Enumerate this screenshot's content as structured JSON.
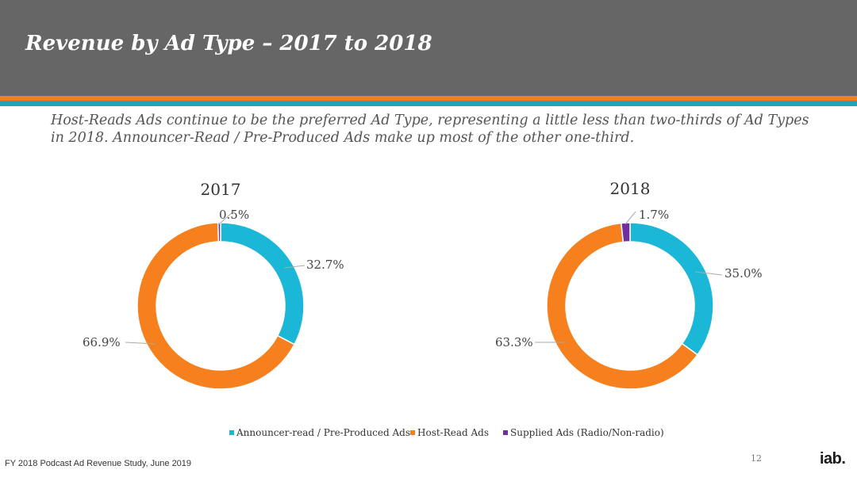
{
  "header": {
    "title": "Revenue by Ad Type – 2017 to 2018",
    "subtitle": "Host-Reads Ads continue to be the preferred Ad Type, representing a little less than two-thirds of Ad Types in 2018. Announcer-Read / Pre-Produced Ads make up most of the other one-third."
  },
  "colors": {
    "header_bg": "#666666",
    "accent_orange": "#f47e20",
    "accent_teal": "#22a3b7"
  },
  "chart_data": [
    {
      "type": "pie",
      "variant": "donut",
      "title": "2017",
      "categories": [
        "Announcer-read / Pre-Produced Ads",
        "Host-Read Ads",
        "Supplied Ads (Radio/Non-radio)"
      ],
      "values": [
        32.7,
        66.9,
        0.5
      ],
      "labels": [
        "32.7%",
        "66.9%",
        "0.5%"
      ],
      "colors": [
        "#1ab7d6",
        "#f5801d",
        "#7030a0"
      ]
    },
    {
      "type": "pie",
      "variant": "donut",
      "title": "2018",
      "categories": [
        "Announcer-read / Pre-Produced Ads",
        "Host-Read Ads",
        "Supplied Ads (Radio/Non-radio)"
      ],
      "values": [
        35.0,
        63.3,
        1.7
      ],
      "labels": [
        "35.0%",
        "63.3%",
        "1.7%"
      ],
      "colors": [
        "#1ab7d6",
        "#f5801d",
        "#7030a0"
      ]
    }
  ],
  "legend": {
    "placement": "bottom",
    "items": [
      {
        "label": "Announcer-read / Pre-Produced Ads",
        "color": "#1ab7d6"
      },
      {
        "label": "Host-Read Ads",
        "color": "#f5801d"
      },
      {
        "label": "Supplied Ads (Radio/Non-radio)",
        "color": "#7030a0"
      }
    ]
  },
  "footer": {
    "source": "FY 2018 Podcast Ad Revenue Study, June 2019",
    "page_number": "12",
    "logo_text": "iab."
  }
}
